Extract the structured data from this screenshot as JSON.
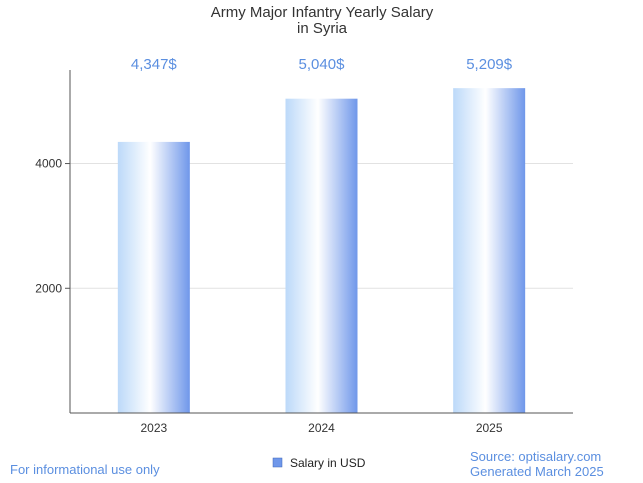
{
  "chart_data": {
    "type": "bar",
    "title_lines": [
      "Army Major Infantry Yearly Salary",
      "in Syria"
    ],
    "categories": [
      "2023",
      "2024",
      "2025"
    ],
    "series": [
      {
        "name": "Salary in USD",
        "values": [
          4347,
          5040,
          5209
        ]
      }
    ],
    "data_labels": [
      "4,347$",
      "5,040$",
      "5,209$"
    ],
    "yticks": [
      2000,
      4000
    ],
    "ytick_labels": [
      "2000",
      "4000"
    ],
    "ylim": [
      0,
      5500
    ],
    "grid": true,
    "legend": "bottom-center"
  },
  "footer": {
    "disclaimer": "For informational use only",
    "source": "Source: optisalary.com",
    "generated": "Generated March 2025"
  },
  "colors": {
    "accent": "#5b8fe0",
    "bar_light": "#ffffff",
    "bar_mid": "#bcd9f9",
    "bar_dark": "#6f97ea",
    "grid": "#e2e2e2",
    "axis": "#555555"
  }
}
